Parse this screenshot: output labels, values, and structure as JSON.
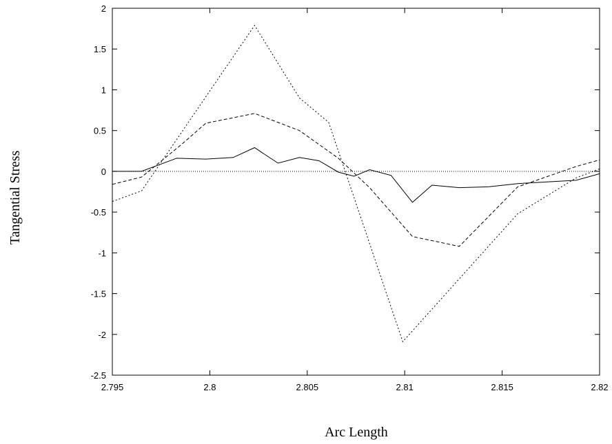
{
  "chart_data": {
    "type": "line",
    "title": "",
    "xlabel": "Arc Length",
    "ylabel": "Tangential Stress",
    "xlim": [
      2.795,
      2.82
    ],
    "ylim": [
      -2.5,
      2
    ],
    "xticks": [
      2.795,
      2.8,
      2.805,
      2.81,
      2.815,
      2.82
    ],
    "xtick_labels": [
      "2.795",
      "2.8",
      "2.805",
      "2.81",
      "2.815",
      "2.82"
    ],
    "yticks": [
      -2.5,
      -2,
      -1.5,
      -1,
      -0.5,
      0,
      0.5,
      1,
      1.5,
      2
    ],
    "ytick_labels": [
      "-2.5",
      "-2",
      "-1.5",
      "-1",
      "-0.5",
      "0",
      "0.5",
      "1",
      "1.5",
      "2"
    ],
    "grid": false,
    "legend": "none",
    "series": [
      {
        "style": "solid",
        "x": [
          2.795,
          2.7965,
          2.7983,
          2.7998,
          2.8012,
          2.8023,
          2.8035,
          2.8046,
          2.8056,
          2.8066,
          2.8074,
          2.8082,
          2.8093,
          2.8104,
          2.8114,
          2.8128,
          2.8143,
          2.8158,
          2.8173,
          2.8188,
          2.82
        ],
        "y": [
          0.0,
          0.0,
          0.16,
          0.15,
          0.17,
          0.29,
          0.1,
          0.17,
          0.13,
          -0.01,
          -0.06,
          0.02,
          -0.05,
          -0.38,
          -0.17,
          -0.2,
          -0.19,
          -0.15,
          -0.13,
          -0.11,
          -0.03
        ]
      },
      {
        "style": "dashed",
        "x": [
          2.795,
          2.7965,
          2.7985,
          2.7998,
          2.8023,
          2.8046,
          2.8066,
          2.8082,
          2.8104,
          2.8128,
          2.8158,
          2.8188,
          2.82
        ],
        "y": [
          -0.16,
          -0.07,
          0.32,
          0.59,
          0.71,
          0.5,
          0.16,
          -0.2,
          -0.8,
          -0.92,
          -0.19,
          0.06,
          0.14
        ]
      },
      {
        "style": "dotted",
        "x": [
          2.795,
          2.7965,
          2.8023,
          2.8046,
          2.8061,
          2.8099,
          2.8158,
          2.8188,
          2.82
        ],
        "y": [
          -0.37,
          -0.24,
          1.79,
          0.9,
          0.6,
          -2.09,
          -0.52,
          -0.08,
          0.03
        ]
      },
      {
        "style": "dotted-fine",
        "x": [
          2.795,
          2.82
        ],
        "y": [
          0,
          0
        ]
      }
    ]
  }
}
